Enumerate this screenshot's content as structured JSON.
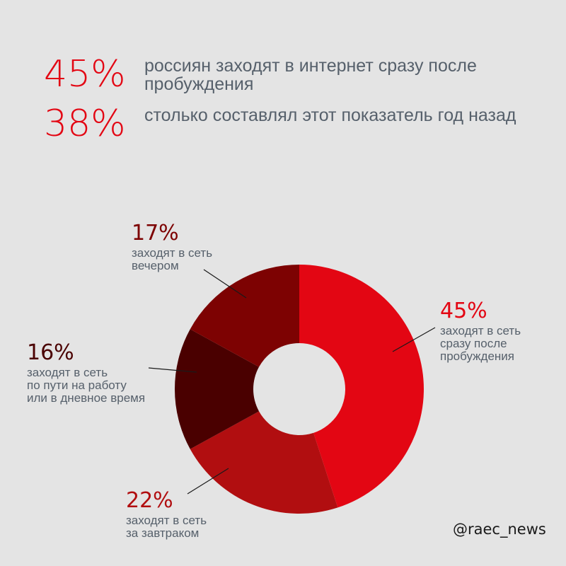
{
  "stats": [
    {
      "value": "45%",
      "text": "россиян заходят в интернет сразу после пробуждения"
    },
    {
      "value": "38%",
      "text": "столько составлял этот показатель год назад"
    }
  ],
  "chart_data": {
    "type": "pie",
    "donut": true,
    "labels": [
      "заходят в сеть сразу после пробуждения",
      "заходят в сеть за завтраком",
      "заходят в сеть по пути на работу или в дневное время",
      "заходят в сеть вечером"
    ],
    "values": [
      45,
      22,
      16,
      17
    ],
    "colors": [
      "#e30613",
      "#b10e10",
      "#4a0000",
      "#7d0202"
    ],
    "label_colors": [
      "#e30613",
      "#b10e10",
      "#4a0000",
      "#7d0202"
    ],
    "slices": [
      {
        "pct": "45%",
        "lines": [
          "заходят в сеть",
          "сразу после",
          "пробуждения"
        ]
      },
      {
        "pct": "22%",
        "lines": [
          "заходят в сеть",
          "за завтраком"
        ]
      },
      {
        "pct": "16%",
        "lines": [
          "заходят в сеть",
          "по пути на работу",
          "или в дневное время"
        ]
      },
      {
        "pct": "17%",
        "lines": [
          "заходят в сеть",
          "вечером"
        ]
      }
    ]
  },
  "footer": {
    "handle": "@raec_news"
  }
}
